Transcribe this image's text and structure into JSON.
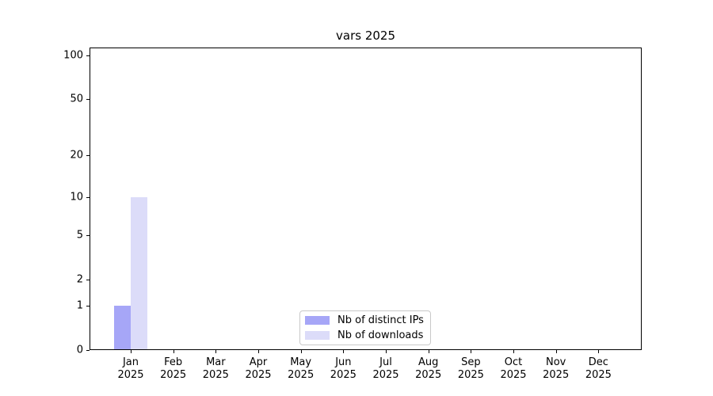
{
  "chart_data": {
    "type": "bar",
    "title": "vars 2025",
    "categories": [
      "Jan",
      "Feb",
      "Mar",
      "Apr",
      "May",
      "Jun",
      "Jul",
      "Aug",
      "Sep",
      "Oct",
      "Nov",
      "Dec"
    ],
    "year_label": "2025",
    "series": [
      {
        "name": "Nb of distinct IPs",
        "color": "#a6a6f7",
        "values": [
          1,
          0,
          0,
          0,
          0,
          0,
          0,
          0,
          0,
          0,
          0,
          0
        ]
      },
      {
        "name": "Nb of downloads",
        "color": "#dcdcf9",
        "values": [
          10,
          0,
          0,
          0,
          0,
          0,
          0,
          0,
          0,
          0,
          0,
          0
        ]
      }
    ],
    "xlabel": "",
    "ylabel": "",
    "yscale": "log1p",
    "ylim": [
      0,
      113
    ],
    "y_major_ticks": [
      0,
      1,
      2,
      5,
      10,
      20,
      50,
      100
    ],
    "y_minor_ticks": [
      3,
      4,
      6,
      7,
      8,
      9,
      30,
      40,
      60,
      70,
      80,
      90
    ],
    "grid": "on",
    "legend_position": "lower center",
    "colors": {
      "major_grid": "#cccccc",
      "minor_grid": "#ebebeb",
      "axis": "#000000",
      "legend_border": "#c9c9c9",
      "text": "#000000",
      "background": "#ffffff"
    }
  }
}
